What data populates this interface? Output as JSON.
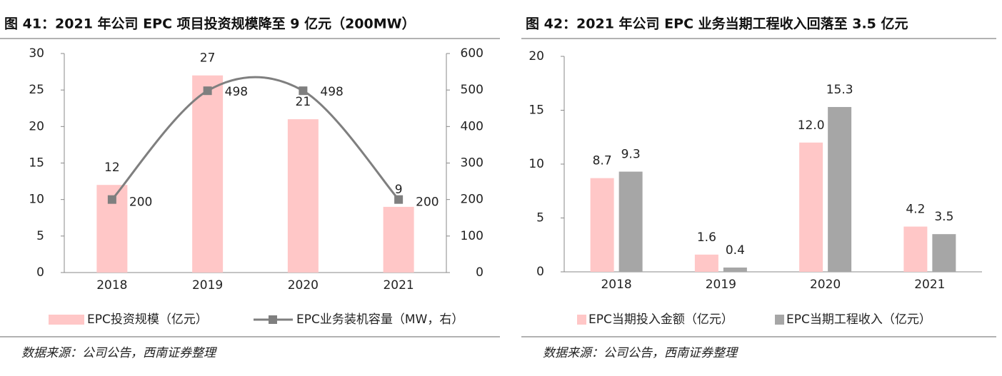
{
  "chart_data": [
    {
      "type": "combo",
      "title": "图 41：2021 年公司 EPC 项目投资规模降至 9 亿元（200MW）",
      "source": "数据来源：公司公告，西南证券整理",
      "categories": [
        "2018",
        "2019",
        "2020",
        "2021"
      ],
      "series": [
        {
          "name": "EPC投资规模（亿元）",
          "type": "bar",
          "color": "#ffc7c7",
          "values": [
            12,
            27,
            21,
            9
          ]
        },
        {
          "name": "EPC业务装机容量（MW，右）",
          "type": "line",
          "axis": "y2",
          "color": "#7f7f7f",
          "values": [
            200,
            498,
            498,
            200
          ]
        }
      ],
      "ylim": [
        0,
        30
      ],
      "yticks": [
        0,
        5,
        10,
        15,
        20,
        25,
        30
      ],
      "y2lim": [
        0,
        600
      ],
      "y2ticks": [
        0,
        100,
        200,
        300,
        400,
        500,
        600
      ],
      "grid": false,
      "legend": "bottom"
    },
    {
      "type": "bar",
      "title": "图 42：2021 年公司 EPC 业务当期工程收入回落至 3.5 亿元",
      "source": "数据来源：公司公告，西南证券整理",
      "categories": [
        "2018",
        "2019",
        "2020",
        "2021"
      ],
      "series": [
        {
          "name": "EPC当期投入金额（亿元）",
          "color": "#ffc7c7",
          "values": [
            8.7,
            1.6,
            12.0,
            4.2
          ],
          "value_labels": [
            "8.7",
            "1.6",
            "12.0",
            "4.2"
          ]
        },
        {
          "name": "EPC当期工程收入（亿元）",
          "color": "#a6a6a6",
          "values": [
            9.3,
            0.4,
            15.3,
            3.5
          ]
        }
      ],
      "ylim": [
        0,
        20
      ],
      "yticks": [
        0,
        5,
        10,
        15,
        20
      ],
      "grid": false,
      "legend": "bottom"
    }
  ]
}
